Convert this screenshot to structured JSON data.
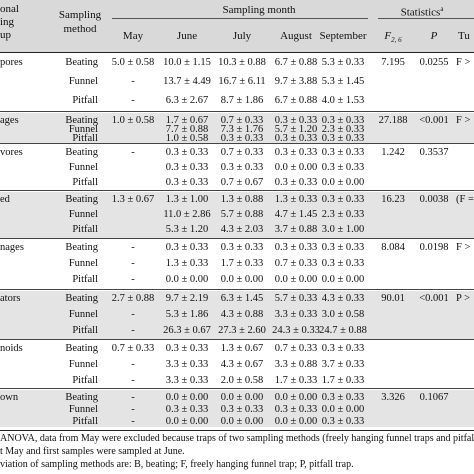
{
  "header": {
    "group_col": [
      "onal",
      "ing",
      "up"
    ],
    "method_col": [
      "Sampling",
      "method"
    ],
    "sampling_month": "Sampling month",
    "months": [
      "May",
      "June",
      "July",
      "August",
      "September"
    ],
    "statistics": "Statistics",
    "statistics_sup": "a",
    "f_label": "F",
    "f_sub": "2, 6",
    "p_label": "P",
    "tu_label": "Tu"
  },
  "groups": [
    {
      "label": "pores",
      "F": "7.195",
      "P": "0.0255",
      "tukey": "F >",
      "rows": [
        {
          "method": "Beating",
          "vals": [
            "5.0 ± 0.58",
            "10.0 ± 1.15",
            "10.3 ± 0.88",
            "6.7 ± 0.88",
            "5.3 ± 0.33"
          ]
        },
        {
          "method": "Funnel",
          "vals": [
            "-",
            "13.7 ± 4.49",
            "16.7 ± 6.11",
            "9.7 ± 3.88",
            "5.3 ± 1.45"
          ]
        },
        {
          "method": "Pitfall",
          "vals": [
            "-",
            "6.3 ± 2.67",
            "8.7 ± 1.86",
            "6.7 ± 0.88",
            "4.0 ± 1.53"
          ]
        }
      ]
    },
    {
      "label": "ages",
      "F": "27.188",
      "P": "<0.001",
      "tukey": "F >",
      "rows": [
        {
          "method": "Beating",
          "vals": [
            "1.0 ± 0.58",
            "1.7 ± 0.67",
            "0.7 ± 0.33",
            "0.3 ± 0.33",
            "0.3 ± 0.33"
          ]
        },
        {
          "method": "Funnel",
          "vals": [
            "",
            "7.7 ± 0.88",
            "7.3 ± 1.76",
            "5.7 ± 1.20",
            "2.3 ± 0.33"
          ]
        },
        {
          "method": "Pitfall",
          "vals": [
            "",
            "1.0 ± 0.58",
            "0.3 ± 0.33",
            "0.3 ± 0.33",
            "0.3 ± 0.33"
          ]
        }
      ]
    },
    {
      "label": "vores",
      "F": "1.242",
      "P": "0.3537",
      "tukey": "",
      "rows": [
        {
          "method": "Beating",
          "vals": [
            "-",
            "0.3 ± 0.33",
            "0.7 ± 0.33",
            "0.3 ± 0.33",
            "0.3 ± 0.33"
          ]
        },
        {
          "method": "Funnel",
          "vals": [
            "",
            "0.3 ± 0.33",
            "0.3 ± 0.33",
            "0.0 ± 0.00",
            "0.3 ± 0.33"
          ]
        },
        {
          "method": "Pitfall",
          "vals": [
            "",
            "0.3 ± 0.33",
            "0.7 ± 0.67",
            "0.3 ± 0.33",
            "0.0 ± 0.00"
          ]
        }
      ]
    },
    {
      "label": "ed",
      "F": "16.23",
      "P": "0.0038",
      "tukey": "(F =",
      "rows": [
        {
          "method": "Beating",
          "vals": [
            "1.3 ± 0.67",
            "1.3 ± 1.00",
            "1.3 ± 0.88",
            "1.3 ± 0.33",
            "0.3 ± 0.33"
          ]
        },
        {
          "method": "Funnel",
          "vals": [
            "",
            "11.0 ± 2.86",
            "5.7 ± 0.88",
            "4.7 ± 1.45",
            "2.3 ± 0.33"
          ]
        },
        {
          "method": "Pitfall",
          "vals": [
            "",
            "5.3 ± 1.20",
            "4.3 ± 2.03",
            "3.7 ± 0.88",
            "3.0 ± 1.00"
          ]
        }
      ]
    },
    {
      "label": "nages",
      "F": "8.084",
      "P": "0.0198",
      "tukey": "F >",
      "rows": [
        {
          "method": "Beating",
          "vals": [
            "-",
            "0.3 ± 0.33",
            "0.3 ± 0.33",
            "0.3 ± 0.33",
            "0.3 ± 0.33"
          ]
        },
        {
          "method": "Funnel",
          "vals": [
            "-",
            "1.3 ± 0.33",
            "1.7 ± 0.33",
            "0.7 ± 0.33",
            "0.3 ± 0.33"
          ]
        },
        {
          "method": "Pitfall",
          "vals": [
            "-",
            "0.0 ± 0.00",
            "0.0 ± 0.00",
            "0.0 ± 0.00",
            "0.0 ± 0.00"
          ]
        }
      ]
    },
    {
      "label": "ators",
      "F": "90.01",
      "P": "<0.001",
      "tukey": "P >",
      "rows": [
        {
          "method": "Beating",
          "vals": [
            "2.7 ± 0.88",
            "9.7 ± 2.19",
            "6.3 ± 1.45",
            "5.7 ± 0.33",
            "4.3 ± 0.33"
          ]
        },
        {
          "method": "Funnel",
          "vals": [
            "-",
            "5.3 ± 1.86",
            "4.3 ± 0.88",
            "3.3 ± 0.33",
            "3.0 ± 0.58"
          ]
        },
        {
          "method": "Pitfall",
          "vals": [
            "-",
            "26.3 ± 0.67",
            "27.3 ± 2.60",
            "24.3 ± 0.33",
            "24.7 ± 0.88"
          ]
        }
      ]
    },
    {
      "label": "noids",
      "F": "",
      "P": "",
      "tukey": "",
      "rows": [
        {
          "method": "Beating",
          "vals": [
            "0.7 ± 0.33",
            "0.3 ± 0.33",
            "1.3 ± 0.67",
            "0.7 ± 0.33",
            "0.3 ± 0.33"
          ]
        },
        {
          "method": "Funnel",
          "vals": [
            "-",
            "3.3 ± 0.33",
            "4.3 ± 0.67",
            "3.3 ± 0.88",
            "3.7 ± 0.33"
          ]
        },
        {
          "method": "Pitfall",
          "vals": [
            "-",
            "3.3 ± 0.33",
            "2.0 ± 0.58",
            "1.7 ± 0.33",
            "1.7 ± 0.33"
          ]
        }
      ]
    },
    {
      "label": "own",
      "F": "3.326",
      "P": "0.1067",
      "tukey": "",
      "rows": [
        {
          "method": "Beating",
          "vals": [
            "-",
            "0.0 ± 0.00",
            "0.0 ± 0.00",
            "0.0 ± 0.00",
            "0.3 ± 0.33"
          ]
        },
        {
          "method": "Funnel",
          "vals": [
            "-",
            "0.3 ± 0.33",
            "0.3 ± 0.33",
            "0.3 ± 0.33",
            "0.0 ± 0.00"
          ]
        },
        {
          "method": "Pitfall",
          "vals": [
            "-",
            "0.0 ± 0.00",
            "0.0 ± 0.00",
            "0.0 ± 0.00",
            "0.3 ± 0.33"
          ]
        }
      ]
    }
  ],
  "footnotes": [
    "ANOVA, data from May were excluded because traps of two sampling methods (freely hanging funnel traps and pitfall tra",
    "t May and first samples were sampled at June.",
    "viation of sampling methods are: B, beating; F, freely hanging funnel trap; P, pitfall trap."
  ]
}
